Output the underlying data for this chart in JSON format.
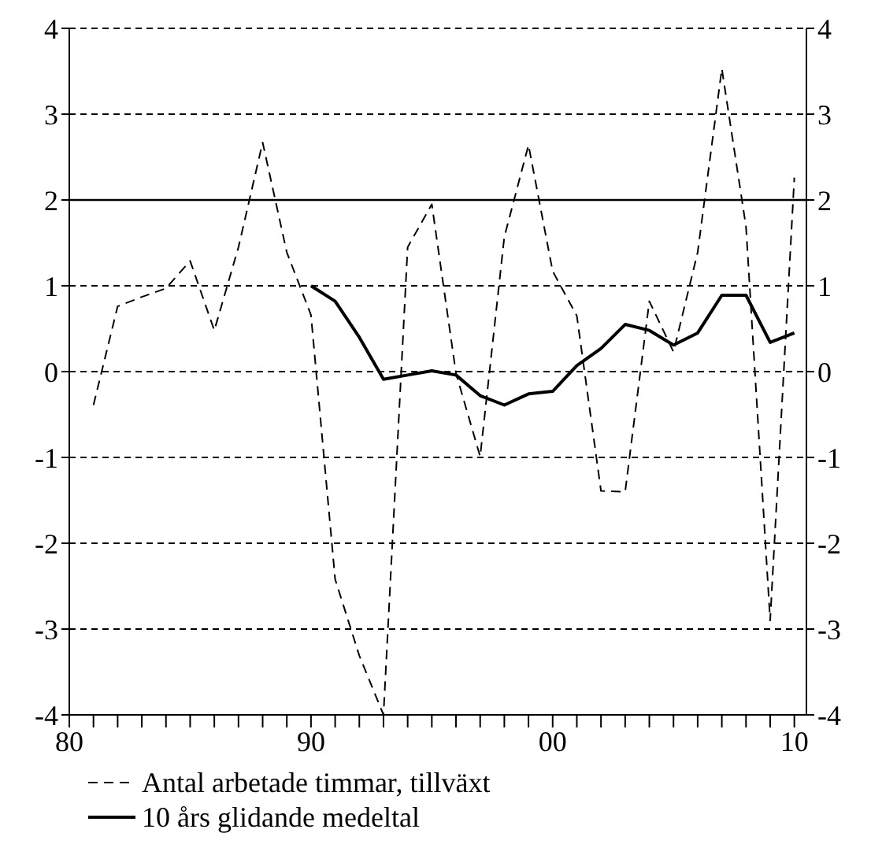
{
  "chart_data": {
    "type": "line",
    "x": [
      1981,
      1982,
      1983,
      1984,
      1985,
      1986,
      1987,
      1988,
      1989,
      1990,
      1991,
      1992,
      1993,
      1994,
      1995,
      1996,
      1997,
      1998,
      1999,
      2000,
      2001,
      2002,
      2003,
      2004,
      2005,
      2006,
      2007,
      2008,
      2009,
      2010
    ],
    "series": [
      {
        "name": "Antal arbetade timmar, tillväxt",
        "color": "#000000",
        "line_style": "dashed",
        "values": [
          -0.39,
          0.76,
          0.87,
          0.97,
          1.29,
          0.48,
          1.45,
          2.67,
          1.39,
          0.66,
          -2.42,
          -3.31,
          -4,
          1.45,
          1.95,
          -0.02,
          -0.99,
          1.57,
          2.64,
          1.17,
          0.65,
          -1.39,
          -1.4,
          0.82,
          0.23,
          1.39,
          3.53,
          1.69,
          -2.9,
          2.26
        ]
      },
      {
        "name": "10 års glidande medeltal",
        "color": "#000000",
        "line_style": "solid",
        "values": [
          null,
          null,
          null,
          null,
          null,
          null,
          null,
          null,
          null,
          1.0,
          0.82,
          0.4,
          -0.09,
          -0.04,
          0.01,
          -0.04,
          -0.28,
          -0.39,
          -0.26,
          -0.23,
          0.07,
          0.27,
          0.55,
          0.48,
          0.31,
          0.45,
          0.89,
          0.89,
          0.34,
          0.45
        ]
      }
    ],
    "xlim": [
      1980,
      2010.5
    ],
    "xticks": [
      {
        "value": 1980,
        "label": "80"
      },
      {
        "value": 1981,
        "label": null
      },
      {
        "value": 1982,
        "label": null
      },
      {
        "value": 1983,
        "label": null
      },
      {
        "value": 1984,
        "label": null
      },
      {
        "value": 1985,
        "label": null
      },
      {
        "value": 1986,
        "label": null
      },
      {
        "value": 1987,
        "label": null
      },
      {
        "value": 1988,
        "label": null
      },
      {
        "value": 1989,
        "label": null
      },
      {
        "value": 1990,
        "label": "90"
      },
      {
        "value": 1991,
        "label": null
      },
      {
        "value": 1992,
        "label": null
      },
      {
        "value": 1993,
        "label": null
      },
      {
        "value": 1994,
        "label": null
      },
      {
        "value": 1995,
        "label": null
      },
      {
        "value": 1996,
        "label": null
      },
      {
        "value": 1997,
        "label": null
      },
      {
        "value": 1998,
        "label": null
      },
      {
        "value": 1999,
        "label": null
      },
      {
        "value": 2000,
        "label": "00"
      },
      {
        "value": 2001,
        "label": null
      },
      {
        "value": 2002,
        "label": null
      },
      {
        "value": 2003,
        "label": null
      },
      {
        "value": 2004,
        "label": null
      },
      {
        "value": 2005,
        "label": null
      },
      {
        "value": 2006,
        "label": null
      },
      {
        "value": 2007,
        "label": null
      },
      {
        "value": 2008,
        "label": null
      },
      {
        "value": 2009,
        "label": null
      },
      {
        "value": 2010,
        "label": "10"
      }
    ],
    "ylim": [
      -4,
      4
    ],
    "yticks": [
      -4,
      -3,
      -2,
      -1,
      0,
      1,
      2,
      3,
      4
    ],
    "y2lim": [
      -4,
      4
    ],
    "y2ticks": [
      -4,
      -3,
      -2,
      -1,
      0,
      1,
      2,
      3,
      4
    ],
    "ref_lines": [
      {
        "axis": "y",
        "value": 2,
        "color": "#000000",
        "line_style": "solid"
      }
    ],
    "grid": "y",
    "legend": "bottom",
    "marker": "none"
  }
}
